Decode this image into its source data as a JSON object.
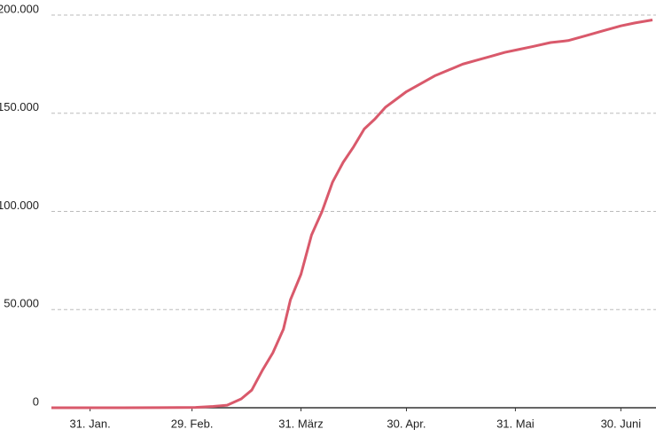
{
  "chart_data": {
    "type": "line",
    "x": [
      20,
      30,
      40,
      50,
      56,
      61,
      66,
      70,
      74,
      77,
      80,
      83,
      86,
      88,
      91,
      94,
      97,
      100,
      103,
      106,
      109,
      112,
      115,
      118,
      121,
      125,
      129,
      133,
      137,
      141,
      145,
      149,
      153,
      157,
      162,
      167,
      172,
      177,
      182,
      186,
      191
    ],
    "series": [
      {
        "color": "#d9596b",
        "values": [
          0,
          0,
          0,
          50,
          100,
          150,
          700,
          1300,
          4500,
          9000,
          19000,
          28000,
          40000,
          55000,
          68000,
          88000,
          100000,
          115000,
          125000,
          133000,
          142000,
          147000,
          153000,
          157000,
          161000,
          165000,
          169000,
          172000,
          175000,
          177000,
          179000,
          181000,
          182500,
          184000,
          186000,
          187000,
          189500,
          192000,
          194500,
          196000,
          197500
        ]
      }
    ],
    "xlim": [
      20,
      192
    ],
    "xticks": [
      {
        "value": 31,
        "label": "31. Jan."
      },
      {
        "value": 60,
        "label": "29. Feb."
      },
      {
        "value": 91,
        "label": "31. März"
      },
      {
        "value": 121,
        "label": "30. Apr."
      },
      {
        "value": 152,
        "label": "31. Mai"
      },
      {
        "value": 182,
        "label": "30. Juni"
      }
    ],
    "ylim": [
      0,
      200000
    ],
    "yticks": [
      0,
      {
        "value": 50000,
        "label": "50.000"
      },
      {
        "value": 100000,
        "label": "100.000"
      },
      {
        "value": 150000,
        "label": "150.000"
      },
      {
        "value": 200000,
        "label": "200.000"
      }
    ],
    "grid": true
  }
}
